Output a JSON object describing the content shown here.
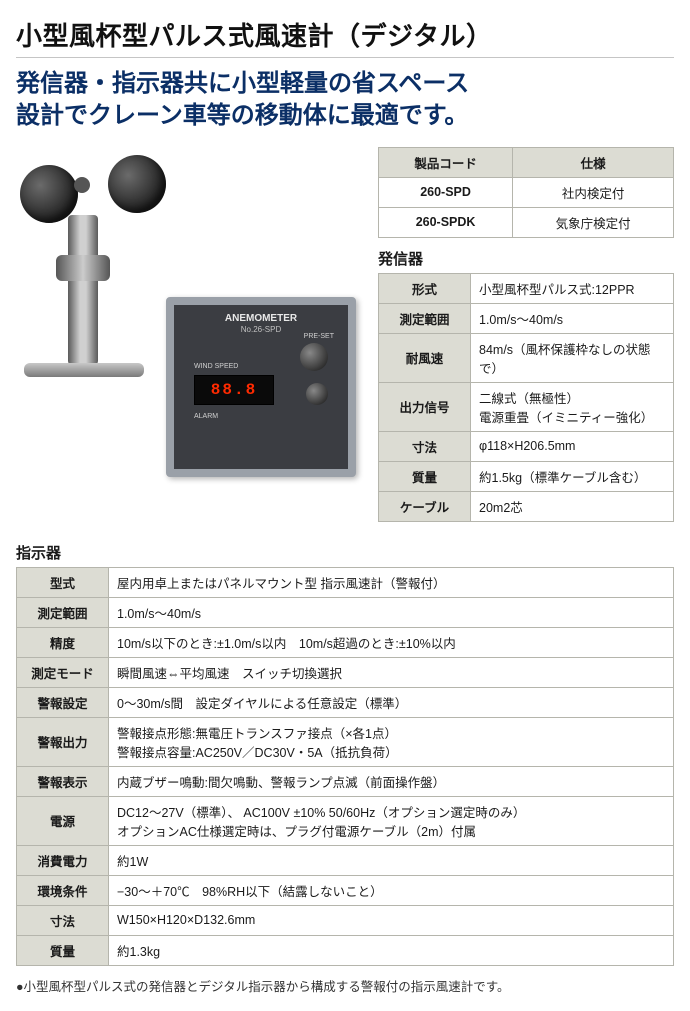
{
  "colors": {
    "subtitle": "#0b2f66",
    "text": "#1a1a1a",
    "th_bg": "#dcdcd3",
    "border": "#b5b5ac",
    "led": "#ff2a00"
  },
  "page_title": "小型風杯型パルス式風速計（デジタル）",
  "subtitle_line1": "発信器・指示器共に小型軽量の省スペース",
  "subtitle_line2": "設計でクレーン車等の移動体に最適です。",
  "meter": {
    "name": "ANEMOMETER",
    "model": "No.26-SPD",
    "digits": "88.8",
    "wind_speed_lbl": "WIND SPEED",
    "alarm_lbl": "ALARM",
    "preset_lbl": "PRE-SET"
  },
  "product_code_table": {
    "headers": [
      "製品コード",
      "仕様"
    ],
    "rows": [
      [
        "260-SPD",
        "社内検定付"
      ],
      [
        "260-SPDK",
        "気象庁検定付"
      ]
    ]
  },
  "transmitter": {
    "heading": "発信器",
    "rows": [
      [
        "形式",
        "小型風杯型パルス式:12PPR"
      ],
      [
        "測定範囲",
        "1.0m/s～40m/s"
      ],
      [
        "耐風速",
        "84m/s（風杯保護枠なしの状態で）"
      ],
      [
        "出力信号",
        "二線式（無極性）\n電源重畳（イミニティー強化）"
      ],
      [
        "寸法",
        "φ118×H206.5mm"
      ],
      [
        "質量",
        "約1.5kg（標準ケーブル含む）"
      ],
      [
        "ケーブル",
        "20m2芯"
      ]
    ]
  },
  "indicator": {
    "heading": "指示器",
    "rows": [
      [
        "型式",
        "屋内用卓上またはパネルマウント型 指示風速計（警報付）"
      ],
      [
        "測定範囲",
        "1.0m/s～40m/s"
      ],
      [
        "精度",
        "10m/s以下のとき:±1.0m/s以内　10m/s超過のとき:±10%以内"
      ],
      [
        "測定モード",
        "瞬間風速⇔平均風速　スイッチ切換選択"
      ],
      [
        "警報設定",
        "0～30m/s間　設定ダイヤルによる任意設定（標準）"
      ],
      [
        "警報出力",
        "警報接点形態:無電圧トランスファ接点（×各1点）\n警報接点容量:AC250V／DC30V・5A（抵抗負荷）"
      ],
      [
        "警報表示",
        "内蔵ブザー鳴動:間欠鳴動、警報ランプ点滅（前面操作盤）"
      ],
      [
        "電源",
        "DC12～27V（標準）、 AC100V ±10% 50/60Hz（オプション選定時のみ）\nオプションAC仕様選定時は、プラグ付電源ケーブル（2m）付属"
      ],
      [
        "消費電力",
        "約1W"
      ],
      [
        "環境条件",
        "−30～＋70℃　98%RH以下（結露しないこと）"
      ],
      [
        "寸法",
        "W150×H120×D132.6mm"
      ],
      [
        "質量",
        "約1.3kg"
      ]
    ]
  },
  "footnote": "●小型風杯型パルス式の発信器とデジタル指示器から構成する警報付の指示風速計です。"
}
